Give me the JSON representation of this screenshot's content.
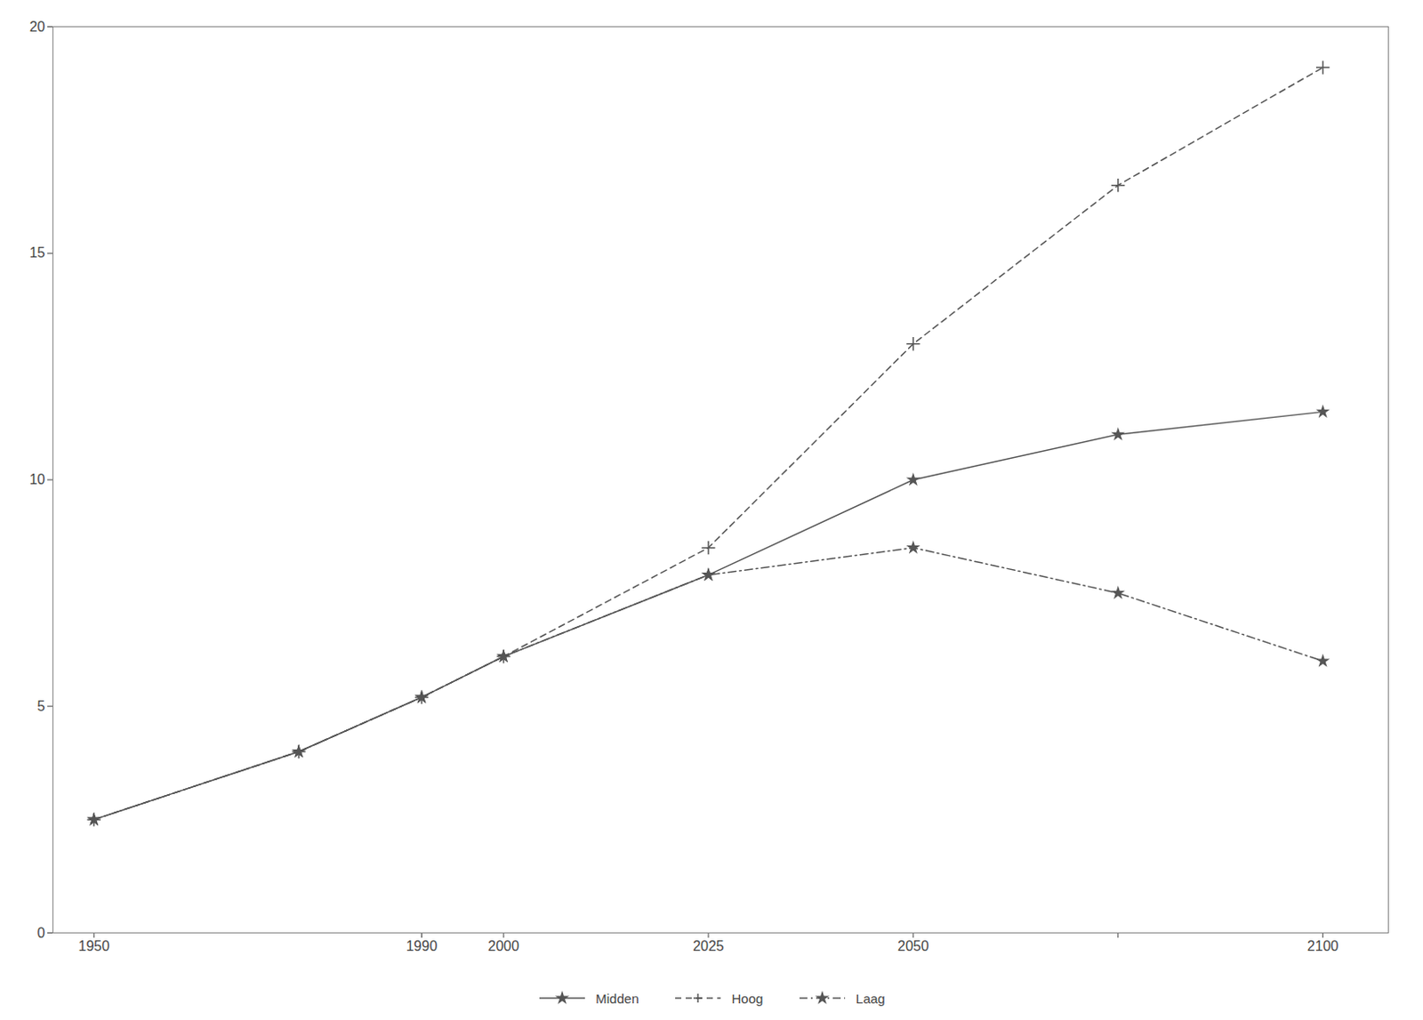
{
  "chart_data": {
    "type": "line",
    "x": [
      1950,
      1975,
      1990,
      2000,
      2025,
      2050,
      2075,
      2100
    ],
    "series": [
      {
        "name": "Midden",
        "color": "#555555",
        "marker": "star",
        "line_style": "solid",
        "values": [
          2.5,
          4.0,
          5.2,
          6.1,
          7.9,
          10.0,
          11.0,
          11.5
        ]
      },
      {
        "name": "Hoog",
        "color": "#555555",
        "marker": "plus",
        "line_style": "dashed",
        "values": [
          2.5,
          4.0,
          5.2,
          6.1,
          8.5,
          13.0,
          16.5,
          19.1
        ]
      },
      {
        "name": "Laag",
        "color": "#555555",
        "marker": "star",
        "line_style": "dashdot",
        "values": [
          2.5,
          4.0,
          5.2,
          6.1,
          7.9,
          8.5,
          7.5,
          6.0
        ]
      }
    ],
    "xlim": [
      1945,
      2108
    ],
    "xticks": [
      1950,
      1990,
      2000,
      2025,
      2050,
      {
        "value": 2075,
        "label": ""
      },
      2100
    ],
    "ylim": [
      0,
      20
    ],
    "yticks": [
      0,
      5,
      10,
      15,
      20
    ],
    "grid": false,
    "legend": "bottom"
  }
}
